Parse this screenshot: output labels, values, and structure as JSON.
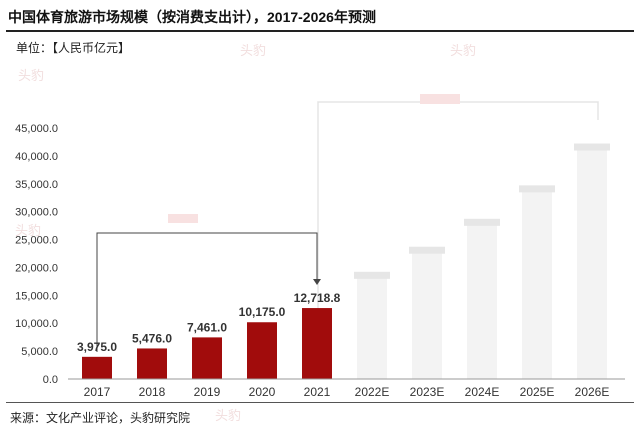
{
  "header": {
    "title": "中国体育旅游市场规模（按消费支出计），2017-2026年预测",
    "unit": "单位：【人民币亿元】"
  },
  "footer": {
    "source": "来源：文化产业评论，头豹研究院"
  },
  "colors": {
    "bar": "#a10c0c",
    "axis_text": "#333333",
    "watermark": "#d9a0a0"
  },
  "chart_data": {
    "type": "bar",
    "title": "中国体育旅游市场规模（按消费支出计），2017-2026年预测",
    "xlabel": "",
    "ylabel": "单位：【人民币亿元】",
    "ylim": [
      0,
      45000
    ],
    "yticks": [
      "0.0",
      "5,000.0",
      "10,000.0",
      "15,000.0",
      "20,000.0",
      "25,000.0",
      "30,000.0",
      "35,000.0",
      "40,000.0",
      "45,000.0"
    ],
    "categories": [
      "2017",
      "2018",
      "2019",
      "2020",
      "2021",
      "2022E",
      "2023E",
      "2024E",
      "2025E",
      "2026E"
    ],
    "values": [
      3975.0,
      5476.0,
      7461.0,
      10175.0,
      12718.8,
      18500,
      23000,
      28000,
      34000,
      41500
    ],
    "data_labels": [
      "3,975.0",
      "5,476.0",
      "7,461.0",
      "10,175.0",
      "12,718.8",
      "",
      "",
      "",
      "",
      ""
    ],
    "blurred_from_index": 5,
    "grid": false,
    "legend": "none"
  }
}
